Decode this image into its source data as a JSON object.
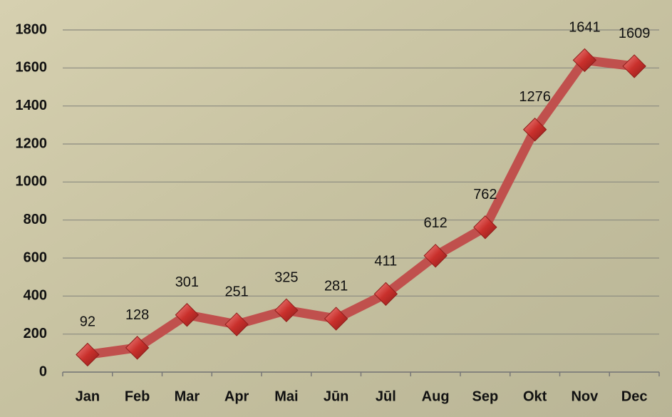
{
  "chart_data": {
    "type": "line",
    "categories": [
      "Jan",
      "Feb",
      "Mar",
      "Apr",
      "Mai",
      "Jūn",
      "Jūl",
      "Aug",
      "Sep",
      "Okt",
      "Nov",
      "Dec"
    ],
    "values": [
      92,
      128,
      301,
      251,
      325,
      281,
      411,
      612,
      762,
      1276,
      1641,
      1609
    ],
    "color": "#c0504d",
    "ylim": [
      0,
      1800
    ],
    "yticks": [
      0,
      200,
      400,
      600,
      800,
      1000,
      1200,
      1400,
      1600,
      1800
    ],
    "grid": true
  }
}
